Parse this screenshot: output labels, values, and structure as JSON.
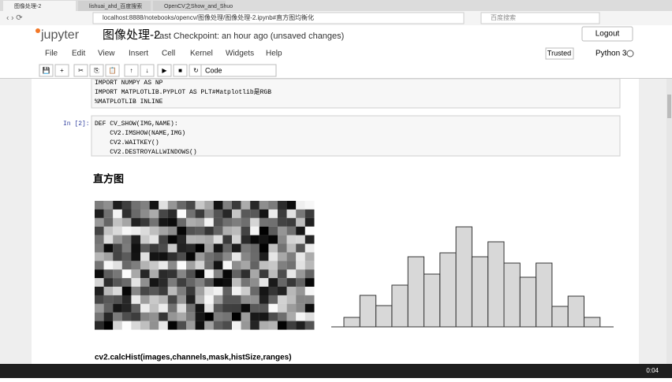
{
  "browser": {
    "tabs": [
      "图像处理-2",
      "lishuai_ahd_百度搜索",
      "OpenCV之Show_and_Shuo"
    ],
    "url": "localhost:8888/notebooks/opencv/图像处理/图像处理-2.ipynb#直方图均衡化",
    "search": "百度搜索"
  },
  "header": {
    "logo": "jupyter",
    "title": "图像处理-2",
    "checkpoint": "Last Checkpoint: an hour ago (unsaved changes)",
    "logout": "Logout"
  },
  "menu": [
    "File",
    "Edit",
    "View",
    "Insert",
    "Cell",
    "Kernel",
    "Widgets",
    "Help"
  ],
  "status": {
    "trusted": "Trusted",
    "kernel": "Python 3"
  },
  "toolbar": {
    "cell_type": "Code"
  },
  "cells": [
    {
      "prompt": null,
      "lines": [
        "IMPORT NUMPY AS NP",
        "IMPORT MATPLOTLIB.PYPLOT AS PLT#Matplotlib是RGB",
        "%MATPLOTLIB INLINE"
      ]
    },
    {
      "prompt": "In [2]:",
      "lines": [
        "DEF CV_SHOW(IMG,NAME):",
        "    CV2.IMSHOW(NAME,IMG)",
        "    CV2.WAITKEY()",
        "    CV2.DESTROYALLWINDOWS()"
      ]
    }
  ],
  "heading": "直方图",
  "histogram": {
    "values": [
      12,
      40,
      27,
      53,
      89,
      67,
      94,
      127,
      89,
      108,
      81,
      63,
      81,
      26,
      39,
      12
    ]
  },
  "bottom_text": "cv2.calcHist(images,channels,mask,histSize,ranges)",
  "taskbar": {
    "time": "0:04"
  }
}
